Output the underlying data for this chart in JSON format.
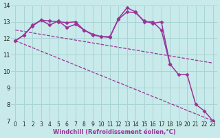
{
  "background_color": "#c8eaea",
  "grid_color": "#aad4d4",
  "line_color": "#993399",
  "xlabel": "Windchill (Refroidissement éolien,°C)",
  "xlim": [
    -0.5,
    23.5
  ],
  "ylim": [
    7,
    14
  ],
  "yticks": [
    7,
    8,
    9,
    10,
    11,
    12,
    13,
    14
  ],
  "xticks": [
    0,
    1,
    2,
    3,
    4,
    5,
    6,
    7,
    8,
    9,
    10,
    11,
    12,
    13,
    14,
    15,
    16,
    17,
    18,
    19,
    20,
    21,
    22,
    23
  ],
  "series": [
    {
      "x": [
        0,
        23
      ],
      "y": [
        11.85,
        7.0
      ],
      "marker": null,
      "linewidth": 0.9,
      "linestyle": "--"
    },
    {
      "x": [
        0,
        23
      ],
      "y": [
        12.5,
        10.5
      ],
      "marker": null,
      "linewidth": 0.9,
      "linestyle": "--"
    },
    {
      "x": [
        0,
        1,
        2,
        3,
        4,
        5,
        6,
        7,
        8,
        9,
        10,
        11,
        12,
        13,
        14,
        15,
        16,
        17,
        18,
        19,
        20,
        21,
        22,
        23
      ],
      "y": [
        11.85,
        12.2,
        12.8,
        13.1,
        12.8,
        13.05,
        12.65,
        12.85,
        12.5,
        12.2,
        12.1,
        12.05,
        13.2,
        13.85,
        13.6,
        13.0,
        13.0,
        12.5,
        10.45,
        9.8,
        9.8,
        8.0,
        7.6,
        7.0
      ],
      "marker": "D",
      "markersize": 2.5,
      "linewidth": 1.1,
      "linestyle": "-"
    },
    {
      "x": [
        0,
        1,
        2,
        3,
        4,
        5,
        6,
        7,
        8,
        9,
        10,
        11,
        12,
        13,
        14,
        15,
        16,
        17,
        18,
        19,
        20,
        21,
        22,
        23
      ],
      "y": [
        11.85,
        12.2,
        12.75,
        13.1,
        13.05,
        13.0,
        12.95,
        13.0,
        12.5,
        12.25,
        12.1,
        12.1,
        13.15,
        13.6,
        13.55,
        13.05,
        12.9,
        13.0,
        10.45,
        null,
        null,
        null,
        null,
        null
      ],
      "marker": "D",
      "markersize": 2.5,
      "linewidth": 1.1,
      "linestyle": "-"
    }
  ]
}
